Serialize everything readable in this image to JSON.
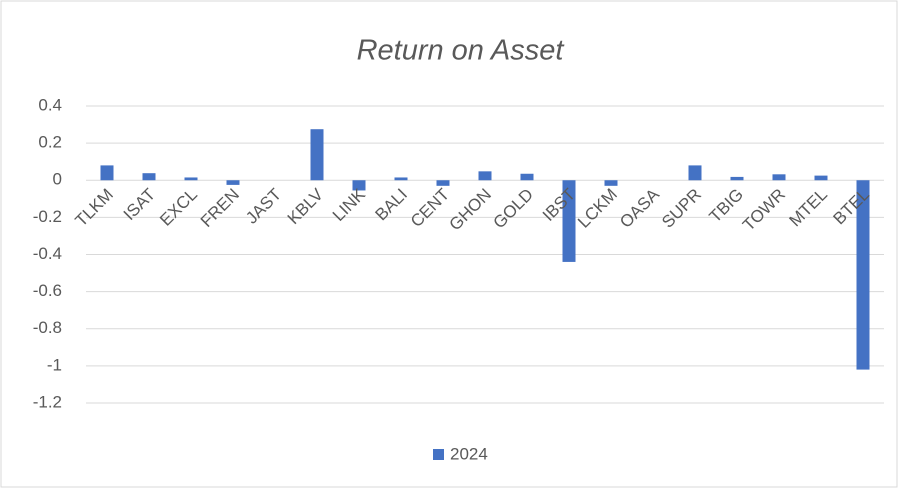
{
  "chart_data": {
    "type": "bar",
    "title": "Return on Asset",
    "categories": [
      "TLKM",
      "ISAT",
      "EXCL",
      "FREN",
      "JAST",
      "KBLV",
      "LINK",
      "BALI",
      "CENT",
      "GHON",
      "GOLD",
      "IBST",
      "LCKM",
      "OASA",
      "SUPR",
      "TBIG",
      "TOWR",
      "MTEL",
      "BTEL"
    ],
    "series": [
      {
        "name": "2024",
        "color": "#4472c4",
        "values": [
          0.08,
          0.038,
          0.015,
          -0.025,
          0,
          0.275,
          -0.055,
          0.015,
          -0.03,
          0.048,
          0.035,
          -0.44,
          -0.03,
          0,
          0.08,
          0.018,
          0.032,
          0.025,
          -1.02
        ]
      }
    ],
    "ylim": [
      -1.2,
      0.4
    ],
    "yticks": [
      -1.2,
      -1,
      -0.8,
      -0.6,
      -0.4,
      -0.2,
      0,
      0.2,
      0.4
    ],
    "grid": true,
    "legend": "bottom"
  }
}
